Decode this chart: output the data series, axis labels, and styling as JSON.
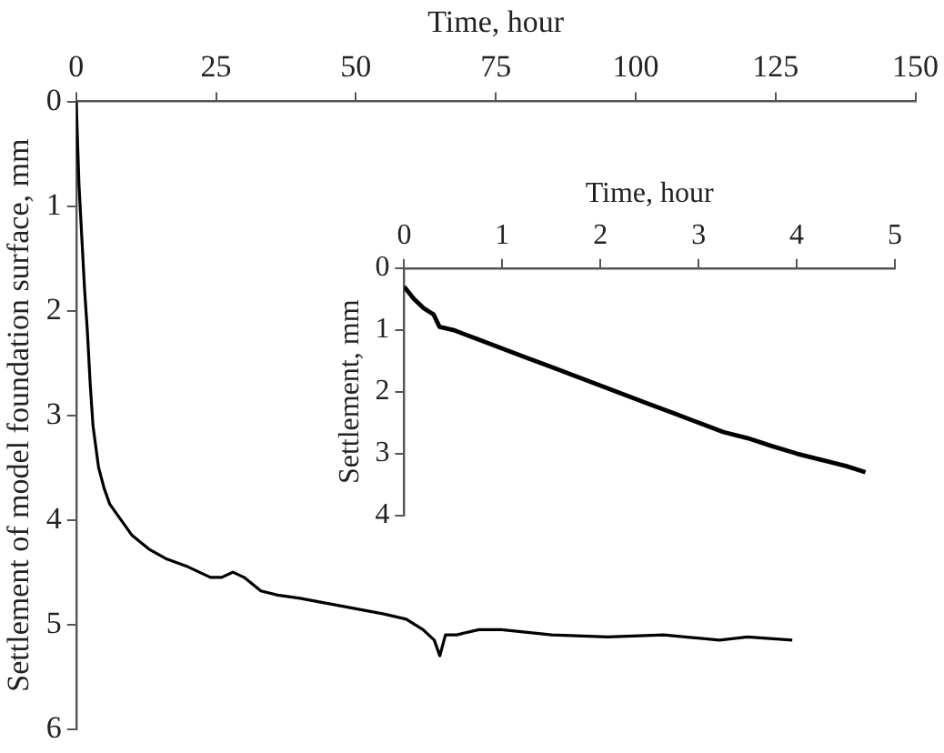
{
  "chart_data": [
    {
      "type": "line",
      "xlabel": "Time, hour",
      "ylabel": "Settlement of model foundation surface, mm",
      "xlim": [
        0,
        150
      ],
      "xticks": [
        0,
        25,
        50,
        75,
        100,
        125,
        150
      ],
      "ylim": [
        6,
        0
      ],
      "yticks": [
        0,
        1,
        2,
        3,
        4,
        5,
        6
      ],
      "grid": false,
      "legend": false,
      "marker": "none",
      "line_style": "solid",
      "series": [
        {
          "color": "#000000",
          "x": [
            0,
            0.5,
            1,
            1.5,
            2,
            2.5,
            3,
            4,
            5,
            6,
            8,
            10,
            13,
            16,
            20,
            24,
            26,
            28,
            30,
            33,
            36,
            40,
            45,
            50,
            55,
            59,
            62,
            64,
            65,
            66,
            68,
            72,
            76,
            85,
            95,
            105,
            115,
            120,
            128
          ],
          "values": [
            0,
            0.8,
            1.3,
            1.8,
            2.2,
            2.7,
            3.1,
            3.5,
            3.7,
            3.85,
            4.0,
            4.15,
            4.28,
            4.37,
            4.45,
            4.55,
            4.55,
            4.5,
            4.55,
            4.68,
            4.72,
            4.75,
            4.8,
            4.85,
            4.9,
            4.95,
            5.05,
            5.15,
            5.3,
            5.1,
            5.1,
            5.05,
            5.05,
            5.1,
            5.12,
            5.1,
            5.15,
            5.12,
            5.15
          ]
        }
      ]
    },
    {
      "type": "line",
      "xlabel": "Time, hour",
      "ylabel": "Settlement, mm",
      "xlim": [
        0,
        5
      ],
      "xticks": [
        0,
        1,
        2,
        3,
        4,
        5
      ],
      "ylim": [
        4,
        0
      ],
      "yticks": [
        0,
        1,
        2,
        3,
        4
      ],
      "grid": false,
      "legend": false,
      "marker": "none",
      "line_style": "solid",
      "series": [
        {
          "color": "#000000",
          "x": [
            0,
            0.1,
            0.2,
            0.3,
            0.33,
            0.36,
            0.5,
            0.75,
            1,
            1.25,
            1.5,
            1.75,
            2,
            2.25,
            2.5,
            2.75,
            3,
            3.25,
            3.5,
            3.75,
            4,
            4.25,
            4.5,
            4.7
          ],
          "values": [
            0.3,
            0.5,
            0.65,
            0.75,
            0.85,
            0.95,
            1.0,
            1.15,
            1.3,
            1.45,
            1.6,
            1.75,
            1.9,
            2.05,
            2.2,
            2.35,
            2.5,
            2.65,
            2.75,
            2.88,
            3.0,
            3.1,
            3.2,
            3.3
          ]
        }
      ]
    }
  ]
}
